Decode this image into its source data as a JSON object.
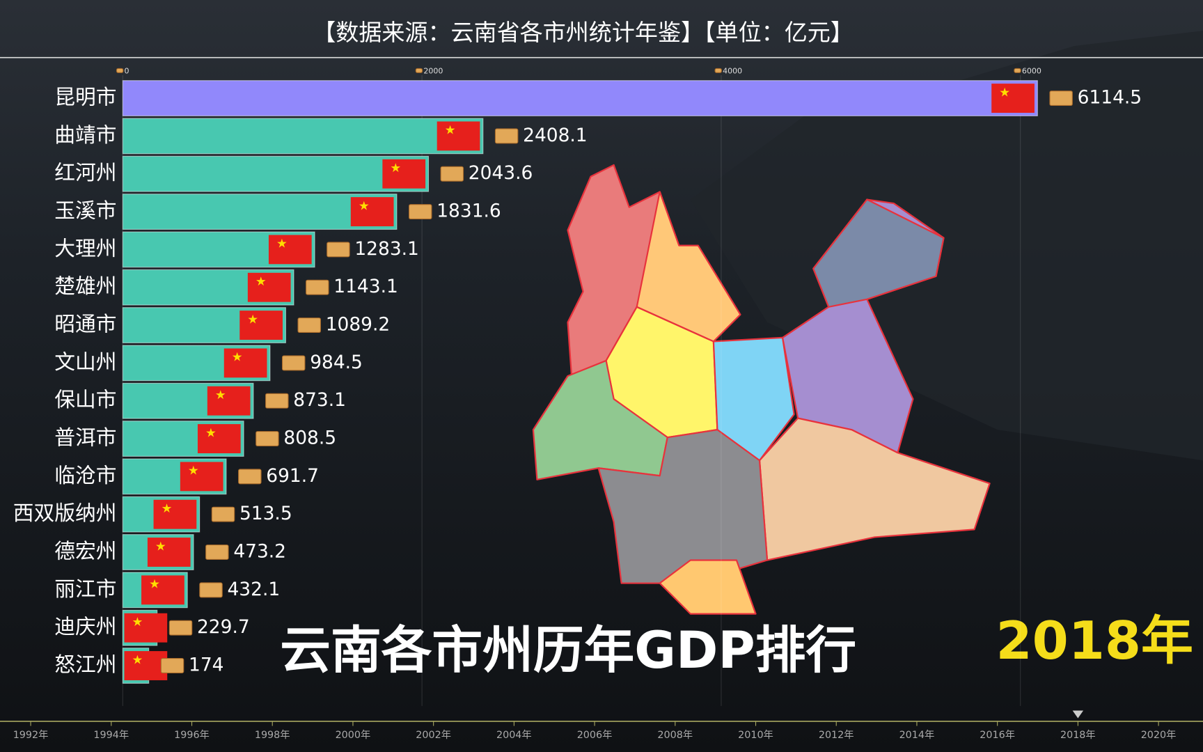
{
  "chart_data": {
    "type": "bar",
    "orientation": "horizontal",
    "header": "【数据来源：云南省各市州统计年鉴】【单位：亿元】",
    "title": "云南各市州历年GDP排行",
    "year": "2018年",
    "categories": [
      "昆明市",
      "曲靖市",
      "红河州",
      "玉溪市",
      "大理州",
      "楚雄州",
      "昭通市",
      "文山州",
      "保山市",
      "普洱市",
      "临沧市",
      "西双版纳州",
      "德宏州",
      "丽江市",
      "迪庆州",
      "怒江州"
    ],
    "values": [
      6114.5,
      2408.1,
      2043.6,
      1831.6,
      1283.1,
      1143.1,
      1089.2,
      984.5,
      873.1,
      808.5,
      691.7,
      513.5,
      473.2,
      432.1,
      229.7,
      174
    ],
    "colors": [
      "#9188fb",
      "#48c8b0",
      "#48c8b0",
      "#48c8b0",
      "#48c8b0",
      "#48c8b0",
      "#48c8b0",
      "#48c8b0",
      "#48c8b0",
      "#48c8b0",
      "#48c8b0",
      "#48c8b0",
      "#48c8b0",
      "#48c8b0",
      "#48c8b0",
      "#48c8b0"
    ],
    "xlim": [
      0,
      7000
    ],
    "xticks": [
      0,
      2000,
      4000,
      6000
    ],
    "timeline": [
      "1992年",
      "1994年",
      "1996年",
      "1998年",
      "2000年",
      "2002年",
      "2004年",
      "2006年",
      "2008年",
      "2010年",
      "2012年",
      "2014年",
      "2016年",
      "2018年",
      "2020年"
    ]
  }
}
